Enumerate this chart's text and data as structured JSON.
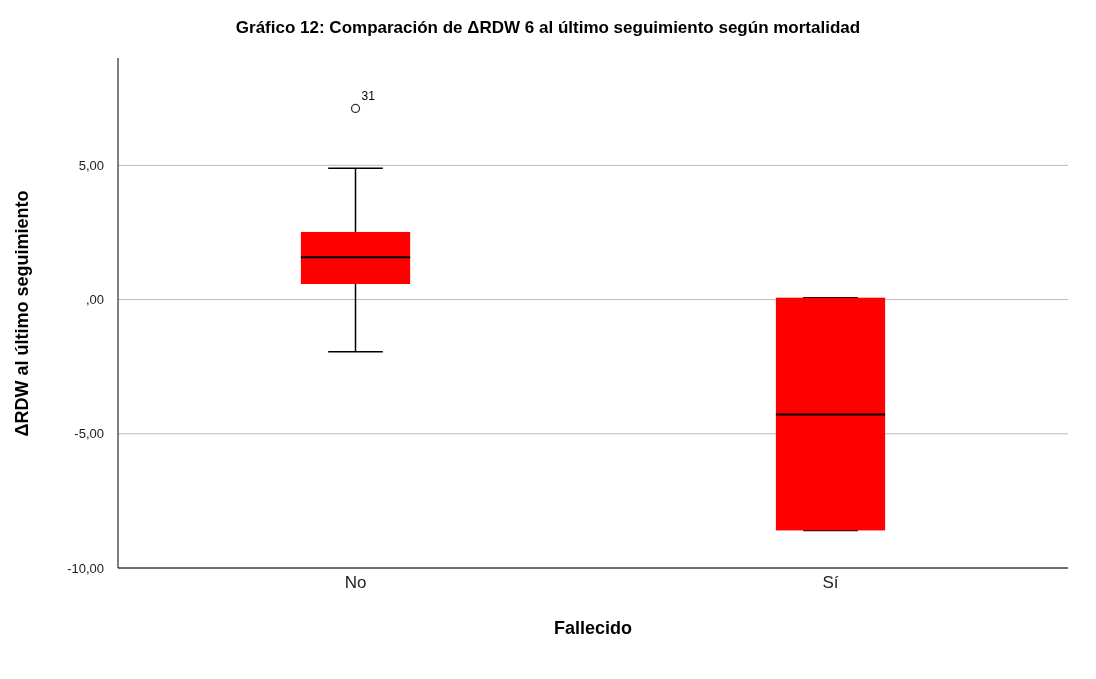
{
  "chart_data": {
    "type": "box",
    "title": "Gráfico 12: Comparación de ΔRDW 6 al último seguimiento según mortalidad",
    "xlabel": "Fallecido",
    "ylabel": "ΔRDW al último seguimiento",
    "categories": [
      "No",
      "Sí"
    ],
    "boxes": [
      {
        "low": -1.94,
        "q1": 0.58,
        "median": 1.58,
        "q3": 2.52,
        "high": 4.89,
        "outliers": [
          7.12
        ]
      },
      {
        "low": -8.6,
        "q1": -8.6,
        "median": -4.28,
        "q3": 0.07,
        "high": 0.07
      }
    ],
    "color": "#ff0000",
    "ylim": [
      -10,
      9
    ],
    "yticks": [
      {
        "value": -10,
        "label": "-10,00"
      },
      {
        "value": -5,
        "label": "-5,00"
      },
      {
        "value": 0,
        "label": ",00"
      },
      {
        "value": 5,
        "label": "5,00"
      }
    ],
    "annotations": [
      "31"
    ],
    "grid": "y"
  }
}
